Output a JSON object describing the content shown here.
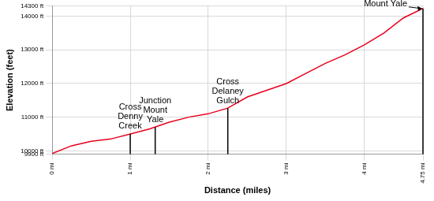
{
  "chart_data": {
    "type": "line",
    "x_label": "Distance (miles)",
    "y_label": "Elevation (feet)",
    "x": [
      0,
      0.25,
      0.5,
      0.75,
      1.0,
      1.25,
      1.5,
      1.75,
      2.0,
      2.25,
      2.5,
      2.75,
      3.0,
      3.25,
      3.5,
      3.75,
      4.0,
      4.25,
      4.5,
      4.75
    ],
    "values": [
      9920,
      10150,
      10280,
      10350,
      10500,
      10650,
      10850,
      11000,
      11100,
      11270,
      11600,
      11800,
      12000,
      12300,
      12600,
      12850,
      13150,
      13500,
      13950,
      14230
    ],
    "color": "#e8001c",
    "xlim": [
      0,
      4.75
    ],
    "ylim": [
      9900,
      14300
    ],
    "xticks": [
      {
        "value": 0,
        "label": "0 mi"
      },
      {
        "value": 1,
        "label": "1 mi"
      },
      {
        "value": 2,
        "label": "2 mi"
      },
      {
        "value": 3,
        "label": "3 mi"
      },
      {
        "value": 4,
        "label": "4 mi"
      },
      {
        "value": 4.75,
        "label": "4.75 mi"
      }
    ],
    "yticks": [
      {
        "value": 9900,
        "label": "9900 ft"
      },
      {
        "value": 10000,
        "label": "10000 ft"
      },
      {
        "value": 11000,
        "label": "11000 ft"
      },
      {
        "value": 12000,
        "label": "12000 ft"
      },
      {
        "value": 13000,
        "label": "13000 ft"
      },
      {
        "value": 14000,
        "label": "14000 ft"
      },
      {
        "value": 14300,
        "label": "14300 ft"
      }
    ],
    "grid": true,
    "annotations": [
      {
        "x": 1.0,
        "y": 10500,
        "label": [
          "Cross",
          "Denny",
          "Creek"
        ]
      },
      {
        "x": 1.32,
        "y": 10700,
        "label": [
          "Junction",
          "Mount",
          "Yale"
        ]
      },
      {
        "x": 2.25,
        "y": 11270,
        "label": [
          "Cross",
          "Delaney",
          "Gulch"
        ]
      },
      {
        "x": 4.75,
        "y": 14230,
        "label": [
          "Mount Yale"
        ]
      }
    ]
  }
}
